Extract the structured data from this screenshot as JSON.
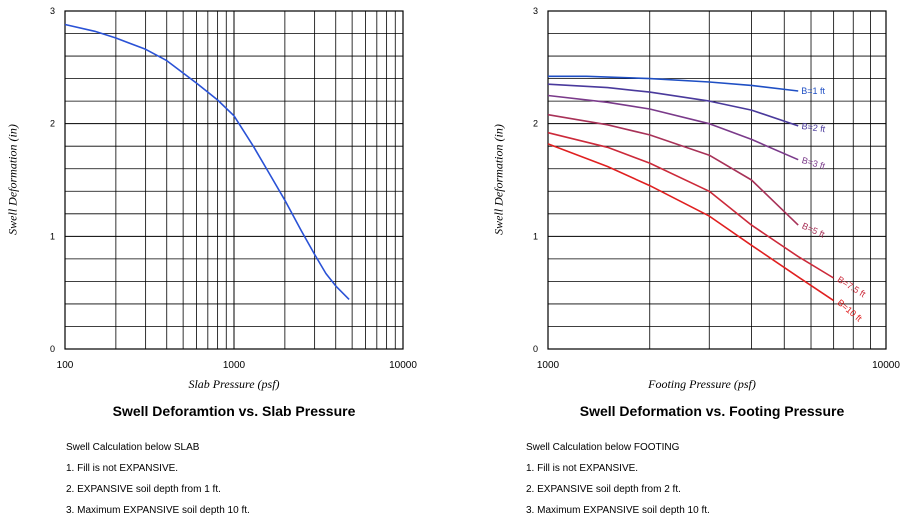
{
  "chart_data": [
    {
      "type": "line",
      "title": "Swell Deforamtion vs. Slab Pressure",
      "xlabel": "Slab Pressure (psf)",
      "ylabel": "Swell Deformation (in)",
      "xscale": "log",
      "xlim": [
        100,
        10000
      ],
      "ylim": [
        0,
        3
      ],
      "xticks": [
        "100",
        "1000",
        "10000"
      ],
      "yticks": [
        "0",
        "1",
        "2",
        "3"
      ],
      "grid": true,
      "series": [
        {
          "color": "#2a52d6",
          "points": [
            [
              100,
              2.88
            ],
            [
              150,
              2.82
            ],
            [
              200,
              2.76
            ],
            [
              300,
              2.66
            ],
            [
              400,
              2.56
            ],
            [
              500,
              2.45
            ],
            [
              600,
              2.36
            ],
            [
              700,
              2.28
            ],
            [
              800,
              2.21
            ],
            [
              1000,
              2.07
            ],
            [
              1300,
              1.8
            ],
            [
              1600,
              1.57
            ],
            [
              2000,
              1.32
            ],
            [
              2500,
              1.05
            ],
            [
              3000,
              0.84
            ],
            [
              3500,
              0.67
            ],
            [
              4000,
              0.56
            ],
            [
              4800,
              0.44
            ]
          ]
        }
      ],
      "notes": [
        "Swell Calculation below SLAB",
        "1. Fill is not EXPANSIVE.",
        "2. EXPANSIVE soil depth from 1 ft.",
        "3. Maximum EXPANSIVE soil depth 10 ft."
      ]
    },
    {
      "type": "line",
      "title": "Swell Deformation vs. Footing Pressure",
      "xlabel": "Footing Pressure (psf)",
      "ylabel": "Swell Deformation (in)",
      "xscale": "log",
      "xlim": [
        1000,
        10000
      ],
      "ylim": [
        0,
        3
      ],
      "xticks": [
        "1000",
        "10000"
      ],
      "yticks": [
        "0",
        "1",
        "2",
        "3"
      ],
      "grid": true,
      "series": [
        {
          "name": "B=1 ft",
          "color": "#1f4fc4",
          "points": [
            [
              1000,
              2.42
            ],
            [
              1300,
              2.42
            ],
            [
              2000,
              2.4
            ],
            [
              3000,
              2.37
            ],
            [
              4000,
              2.34
            ],
            [
              5500,
              2.29
            ]
          ]
        },
        {
          "name": "B=2 ft",
          "color": "#4a3a9c",
          "points": [
            [
              1000,
              2.35
            ],
            [
              1500,
              2.32
            ],
            [
              2000,
              2.28
            ],
            [
              3000,
              2.2
            ],
            [
              4000,
              2.12
            ],
            [
              5500,
              1.98
            ]
          ]
        },
        {
          "name": "B=3 ft",
          "color": "#7a3a8a",
          "points": [
            [
              1000,
              2.25
            ],
            [
              1500,
              2.19
            ],
            [
              2000,
              2.13
            ],
            [
              3000,
              2.0
            ],
            [
              4000,
              1.86
            ],
            [
              5500,
              1.68
            ]
          ]
        },
        {
          "name": "B=5 ft",
          "color": "#a83258",
          "points": [
            [
              1000,
              2.08
            ],
            [
              1500,
              1.99
            ],
            [
              2000,
              1.9
            ],
            [
              3000,
              1.72
            ],
            [
              4000,
              1.5
            ],
            [
              5500,
              1.1
            ]
          ]
        },
        {
          "name": "B=7.5 ft",
          "color": "#cc2a3a",
          "points": [
            [
              1000,
              1.92
            ],
            [
              1500,
              1.79
            ],
            [
              2000,
              1.65
            ],
            [
              3000,
              1.4
            ],
            [
              4000,
              1.1
            ],
            [
              5500,
              0.82
            ],
            [
              7000,
              0.63
            ]
          ]
        },
        {
          "name": "B=10 ft",
          "color": "#e02020",
          "points": [
            [
              1000,
              1.82
            ],
            [
              1500,
              1.62
            ],
            [
              2000,
              1.45
            ],
            [
              3000,
              1.18
            ],
            [
              4000,
              0.92
            ],
            [
              5500,
              0.64
            ],
            [
              7000,
              0.43
            ]
          ]
        }
      ],
      "notes": [
        "Swell Calculation below FOOTING",
        "1. Fill is not EXPANSIVE.",
        "2. EXPANSIVE soil depth from 2 ft.",
        "3. Maximum EXPANSIVE soil depth 10 ft."
      ]
    }
  ]
}
